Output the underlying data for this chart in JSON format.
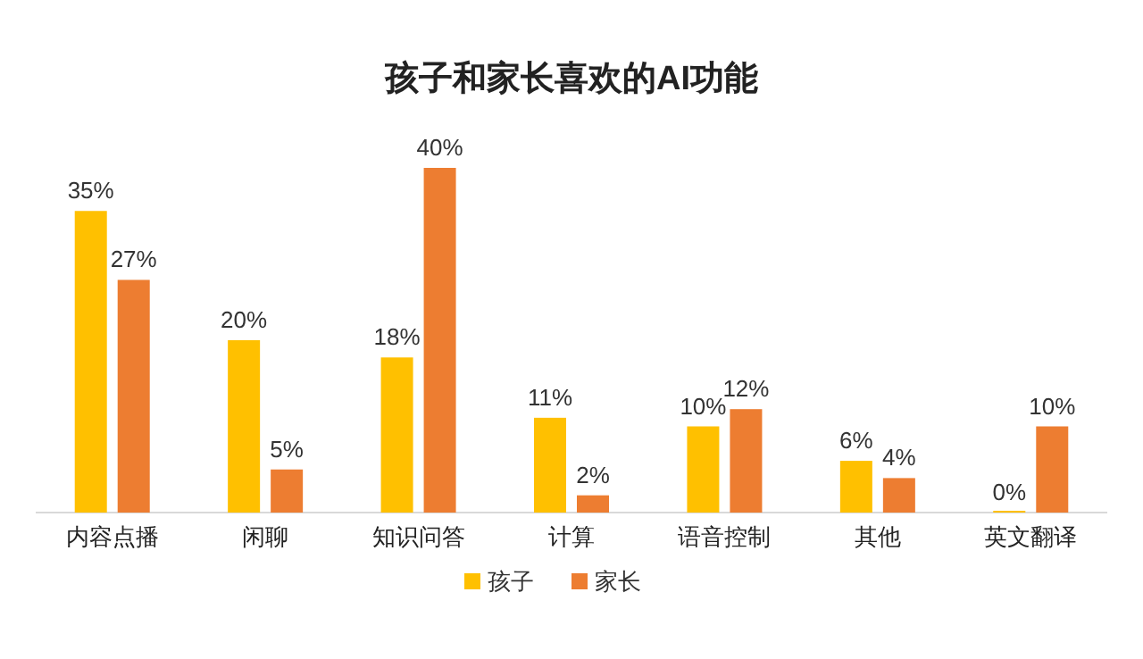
{
  "chart_data": {
    "type": "bar",
    "title": "孩子和家长喜欢的AI功能",
    "categories": [
      "内容点播",
      "闲聊",
      "知识问答",
      "计算",
      "语音控制",
      "其他",
      "英文翻译"
    ],
    "series": [
      {
        "name": "孩子",
        "color": "#ffc000",
        "values": [
          35,
          20,
          18,
          11,
          10,
          6,
          0
        ],
        "value_labels": [
          "35%",
          "20%",
          "18%",
          "11%",
          "10%",
          "6%",
          "0%"
        ]
      },
      {
        "name": "家长",
        "color": "#ed7d31",
        "values": [
          27,
          5,
          40,
          2,
          12,
          4,
          10
        ],
        "value_labels": [
          "27%",
          "5%",
          "40%",
          "2%",
          "12%",
          "4%",
          "10%"
        ]
      }
    ],
    "legend": "bottom"
  }
}
